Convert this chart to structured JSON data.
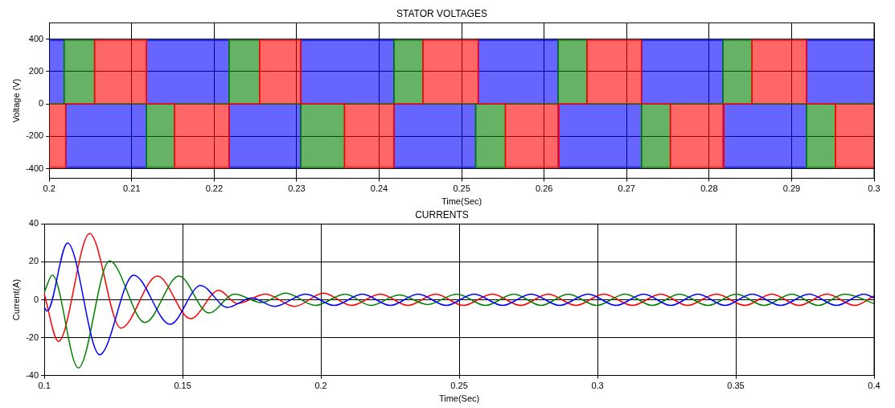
{
  "chart_data": [
    {
      "type": "step",
      "title": "STATOR VOLTAGES",
      "xlabel": "Time(Sec)",
      "ylabel": "Voltage (V)",
      "xlim": [
        0.2,
        0.3
      ],
      "ylim": [
        -460,
        500
      ],
      "xticks": [
        0.2,
        0.21,
        0.22,
        0.23,
        0.24,
        0.25,
        0.26,
        0.27,
        0.28,
        0.29,
        {
          "value": 0.3,
          "label": "0.3"
        }
      ],
      "yticks": [
        -400,
        -200,
        0,
        200,
        400
      ],
      "grid": true,
      "series": [
        {
          "color": "#ff0000",
          "x": [
            0.2,
            0.202,
            0.2055,
            0.2118,
            0.2152,
            0.2218,
            0.2255,
            0.2305,
            0.2358,
            0.2418,
            0.2453,
            0.252,
            0.2553,
            0.2618,
            0.2652,
            0.2718,
            0.2753,
            0.2818,
            0.2852,
            0.2918,
            0.2953,
            0.3
          ],
          "values": [
            -393,
            0,
            393,
            0,
            -393,
            0,
            393,
            0,
            -393,
            0,
            393,
            0,
            -393,
            0,
            393,
            0,
            -393,
            0,
            393,
            0,
            -393,
            -393
          ]
        },
        {
          "color": "#008000",
          "x": [
            0.2,
            0.2018,
            0.2055,
            0.2118,
            0.2152,
            0.2218,
            0.2255,
            0.2305,
            0.2358,
            0.2418,
            0.2453,
            0.2517,
            0.2553,
            0.2617,
            0.2652,
            0.2718,
            0.2753,
            0.2817,
            0.2852,
            0.2918,
            0.2953,
            0.3
          ],
          "values": [
            0,
            393,
            0,
            -393,
            0,
            393,
            0,
            -393,
            0,
            393,
            0,
            -393,
            0,
            393,
            0,
            -393,
            0,
            393,
            0,
            -393,
            0,
            0
          ]
        },
        {
          "color": "#0000ff",
          "x": [
            0.2,
            0.2018,
            0.202,
            0.2118,
            0.2218,
            0.2305,
            0.2418,
            0.2517,
            0.252,
            0.2617,
            0.2718,
            0.2817,
            0.2918,
            0.3
          ],
          "values": [
            393,
            0,
            -393,
            393,
            -393,
            393,
            -393,
            0,
            393,
            -393,
            393,
            -393,
            393,
            393
          ]
        }
      ]
    },
    {
      "type": "line",
      "title": "CURRENTS",
      "xlabel": "Time(Sec)",
      "ylabel": "Current(A)",
      "xlim": [
        0.1,
        0.4
      ],
      "ylim": [
        -40,
        40
      ],
      "xticks": [
        0.1,
        0.15,
        0.2,
        0.25,
        0.3,
        0.35,
        0.4
      ],
      "yticks": [
        -40,
        -20,
        0,
        20,
        40
      ],
      "grid": true,
      "series": [
        {
          "color": "#008000",
          "x": [
            0.1,
            0.1029,
            0.1123,
            0.1236,
            0.1364,
            0.1487,
            0.1595,
            0.1688,
            0.1785,
            0.1873,
            0.198,
            0.2088,
            0.218,
            0.2283,
            0.2386,
            0.2492,
            0.2595,
            0.2698,
            0.2796,
            0.2894,
            0.2997,
            0.31,
            0.3198,
            0.3296,
            0.3399,
            0.3502,
            0.3602,
            0.3703,
            0.3798,
            0.3894,
            0.4
          ],
          "values": [
            4,
            13,
            -36,
            20.5,
            -12,
            12.5,
            -7,
            3,
            -1.5,
            3.5,
            -3,
            3,
            -3,
            2.5,
            -2.5,
            3,
            -3,
            3,
            -3,
            3,
            -3,
            3,
            -3,
            3,
            -3,
            3,
            -3,
            3,
            -3,
            3,
            -2
          ]
        },
        {
          "color": "#0000ff",
          "x": [
            0.1,
            0.101,
            0.1084,
            0.12,
            0.1323,
            0.1455,
            0.1565,
            0.1662,
            0.175,
            0.1832,
            0.1945,
            0.2048,
            0.215,
            0.2251,
            0.2352,
            0.2453,
            0.2554,
            0.2657,
            0.276,
            0.2863,
            0.2966,
            0.3067,
            0.3167,
            0.3265,
            0.3363,
            0.3461,
            0.3559,
            0.3662,
            0.3765,
            0.3864,
            0.3963,
            0.4
          ],
          "values": [
            -4,
            -6,
            30,
            -29,
            13,
            -13,
            7.5,
            -4,
            1,
            -3.5,
            3,
            -3,
            3,
            -3,
            3,
            -3,
            3,
            -3,
            3,
            -3,
            3,
            -3,
            3,
            -3,
            3,
            -3,
            3,
            -3,
            3,
            -3,
            3,
            1
          ]
        },
        {
          "color": "#ff0000",
          "x": [
            0.1,
            0.1051,
            0.1164,
            0.1277,
            0.1409,
            0.1529,
            0.1631,
            0.1698,
            0.18,
            0.1905,
            0.201,
            0.211,
            0.2215,
            0.2315,
            0.2415,
            0.2515,
            0.262,
            0.2722,
            0.2822,
            0.2922,
            0.3023,
            0.3126,
            0.3229,
            0.3325,
            0.343,
            0.3533,
            0.363,
            0.3729,
            0.383,
            0.393,
            0.4
          ],
          "values": [
            3,
            -22,
            35,
            -15,
            12.5,
            -10,
            5,
            -2,
            3,
            -3.5,
            3.5,
            -3,
            3,
            -3,
            3,
            -3,
            3,
            -3,
            3,
            -3,
            3,
            -3,
            3,
            -3,
            3,
            -3,
            3,
            -3,
            3,
            -3,
            2
          ]
        }
      ]
    }
  ]
}
